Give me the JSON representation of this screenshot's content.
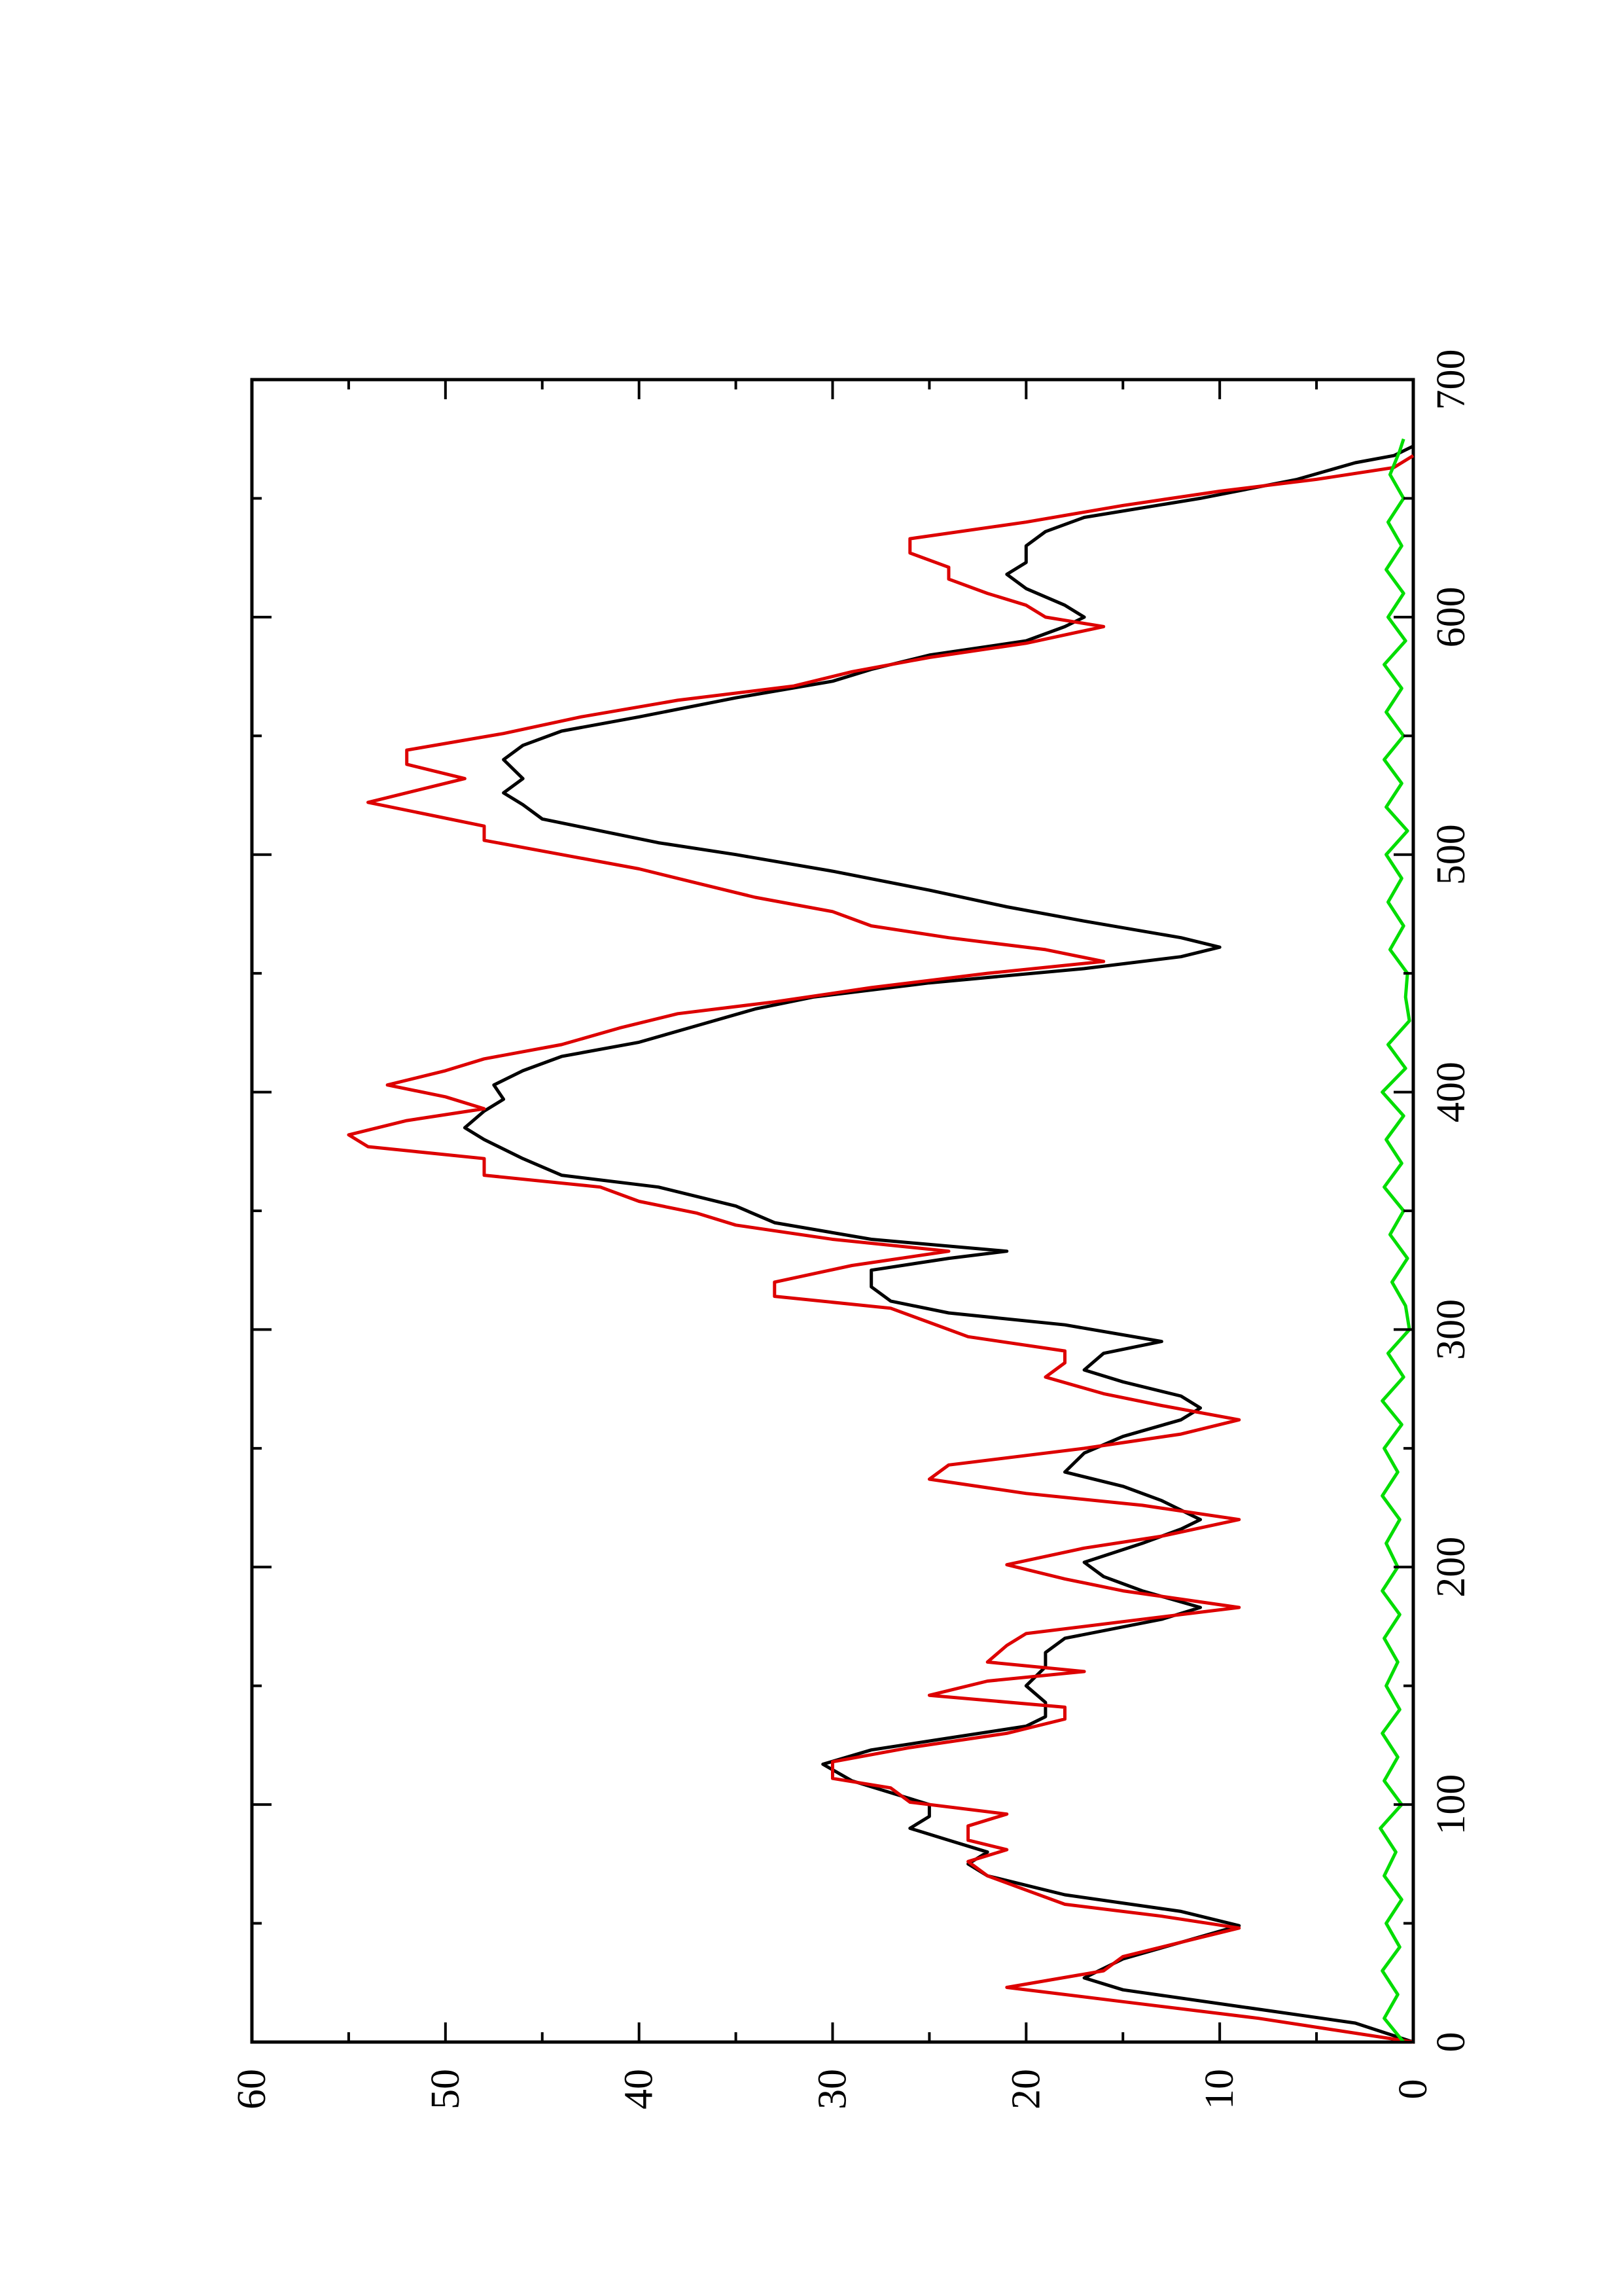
{
  "chart_data": {
    "type": "line",
    "orientation": "rotated-90-ccw",
    "title": "",
    "xlabel": "",
    "ylabel": "",
    "xlim": [
      0,
      700
    ],
    "ylim": [
      0,
      60
    ],
    "grid": false,
    "legend": "none",
    "x_ticks": [
      "0",
      "100",
      "200",
      "300",
      "400",
      "500",
      "600",
      "700"
    ],
    "y_ticks": [
      "0",
      "10",
      "20",
      "30",
      "40",
      "50",
      "60"
    ],
    "colors": {
      "black_series": "#000000",
      "red_series": "#dd0000",
      "green_series": "#00dd00"
    },
    "series": [
      {
        "color": "#000000",
        "points": [
          [
            0,
            0
          ],
          [
            8,
            3
          ],
          [
            15,
            9
          ],
          [
            22,
            15
          ],
          [
            27,
            17
          ],
          [
            35,
            15
          ],
          [
            42,
            12
          ],
          [
            49,
            9
          ],
          [
            55,
            12
          ],
          [
            62,
            18
          ],
          [
            70,
            22
          ],
          [
            75,
            23
          ],
          [
            80,
            22
          ],
          [
            85,
            24
          ],
          [
            90,
            26
          ],
          [
            95,
            25
          ],
          [
            100,
            25
          ],
          [
            105,
            27
          ],
          [
            110,
            29
          ],
          [
            117,
            30.5
          ],
          [
            123,
            28
          ],
          [
            128,
            24
          ],
          [
            133,
            20
          ],
          [
            137,
            19
          ],
          [
            143,
            19
          ],
          [
            150,
            20
          ],
          [
            158,
            19
          ],
          [
            164,
            19
          ],
          [
            170,
            18
          ],
          [
            178,
            13
          ],
          [
            183,
            11
          ],
          [
            190,
            14
          ],
          [
            196,
            16
          ],
          [
            202,
            17
          ],
          [
            210,
            14
          ],
          [
            216,
            12
          ],
          [
            220,
            11
          ],
          [
            228,
            13
          ],
          [
            234,
            15
          ],
          [
            240,
            18
          ],
          [
            248,
            17
          ],
          [
            255,
            15
          ],
          [
            262,
            12
          ],
          [
            267,
            11
          ],
          [
            272,
            12
          ],
          [
            278,
            15
          ],
          [
            283,
            17
          ],
          [
            290,
            16
          ],
          [
            295,
            13
          ],
          [
            302,
            18
          ],
          [
            307,
            24
          ],
          [
            312,
            27
          ],
          [
            318,
            28
          ],
          [
            325,
            28
          ],
          [
            330,
            24
          ],
          [
            333,
            21
          ],
          [
            338,
            28
          ],
          [
            345,
            33
          ],
          [
            352,
            35
          ],
          [
            360,
            39
          ],
          [
            365,
            44
          ],
          [
            372,
            46
          ],
          [
            380,
            48
          ],
          [
            385,
            49
          ],
          [
            392,
            48
          ],
          [
            397,
            47
          ],
          [
            403,
            47.5
          ],
          [
            409,
            46
          ],
          [
            415,
            44
          ],
          [
            421,
            40
          ],
          [
            428,
            37
          ],
          [
            435,
            34
          ],
          [
            440,
            31
          ],
          [
            446,
            25
          ],
          [
            452,
            17
          ],
          [
            457,
            12
          ],
          [
            461,
            10
          ],
          [
            465,
            12
          ],
          [
            472,
            17
          ],
          [
            478,
            21
          ],
          [
            485,
            25
          ],
          [
            493,
            30
          ],
          [
            500,
            35
          ],
          [
            505,
            39
          ],
          [
            510,
            42
          ],
          [
            515,
            45
          ],
          [
            521,
            46
          ],
          [
            526,
            47
          ],
          [
            532,
            46
          ],
          [
            540,
            47
          ],
          [
            546,
            46
          ],
          [
            552,
            44
          ],
          [
            558,
            40
          ],
          [
            566,
            35
          ],
          [
            573,
            30
          ],
          [
            578,
            28
          ],
          [
            584,
            25
          ],
          [
            590,
            20
          ],
          [
            596,
            18
          ],
          [
            600,
            17
          ],
          [
            605,
            18
          ],
          [
            612,
            20
          ],
          [
            618,
            21
          ],
          [
            623,
            20
          ],
          [
            630,
            20
          ],
          [
            636,
            19
          ],
          [
            642,
            17
          ],
          [
            650,
            11
          ],
          [
            658,
            6
          ],
          [
            665,
            3
          ],
          [
            668,
            1
          ],
          [
            672,
            0
          ]
        ]
      },
      {
        "color": "#dd0000",
        "points": [
          [
            0,
            0
          ],
          [
            5,
            4
          ],
          [
            10,
            8
          ],
          [
            17,
            15
          ],
          [
            23,
            21
          ],
          [
            30,
            16
          ],
          [
            36,
            15
          ],
          [
            42,
            12
          ],
          [
            48,
            9
          ],
          [
            53,
            13
          ],
          [
            58,
            18
          ],
          [
            64,
            20
          ],
          [
            70,
            22
          ],
          [
            76,
            23
          ],
          [
            81,
            21
          ],
          [
            85,
            23
          ],
          [
            91,
            23
          ],
          [
            96,
            21
          ],
          [
            101,
            26
          ],
          [
            107,
            27
          ],
          [
            111,
            30
          ],
          [
            118,
            30
          ],
          [
            124,
            26
          ],
          [
            130,
            21
          ],
          [
            136,
            18
          ],
          [
            141,
            18
          ],
          [
            146,
            25
          ],
          [
            152,
            22
          ],
          [
            156,
            17
          ],
          [
            160,
            22
          ],
          [
            167,
            21
          ],
          [
            172,
            20
          ],
          [
            177,
            15
          ],
          [
            183,
            9
          ],
          [
            190,
            15
          ],
          [
            195,
            18
          ],
          [
            201,
            21
          ],
          [
            208,
            17
          ],
          [
            213,
            13
          ],
          [
            220,
            9
          ],
          [
            226,
            14
          ],
          [
            231,
            20
          ],
          [
            237,
            25
          ],
          [
            243,
            24
          ],
          [
            250,
            17
          ],
          [
            256,
            12
          ],
          [
            262,
            9
          ],
          [
            268,
            13
          ],
          [
            273,
            16
          ],
          [
            280,
            19
          ],
          [
            286,
            18
          ],
          [
            291,
            18
          ],
          [
            297,
            23
          ],
          [
            303,
            25
          ],
          [
            309,
            27
          ],
          [
            314,
            33
          ],
          [
            320,
            33
          ],
          [
            327,
            29
          ],
          [
            333,
            24
          ],
          [
            338,
            30
          ],
          [
            344,
            35
          ],
          [
            349,
            37
          ],
          [
            354,
            40
          ],
          [
            360,
            42
          ],
          [
            365,
            48
          ],
          [
            372,
            48
          ],
          [
            377,
            54
          ],
          [
            382,
            55
          ],
          [
            388,
            52
          ],
          [
            393,
            48
          ],
          [
            398,
            50
          ],
          [
            403,
            53
          ],
          [
            409,
            50
          ],
          [
            414,
            48
          ],
          [
            420,
            44
          ],
          [
            427,
            41
          ],
          [
            433,
            38
          ],
          [
            438,
            33
          ],
          [
            444,
            28
          ],
          [
            450,
            22
          ],
          [
            455,
            16
          ],
          [
            460,
            19
          ],
          [
            465,
            24
          ],
          [
            470,
            28
          ],
          [
            476,
            30
          ],
          [
            482,
            34
          ],
          [
            488,
            37
          ],
          [
            494,
            40
          ],
          [
            500,
            44
          ],
          [
            506,
            48
          ],
          [
            512,
            48
          ],
          [
            517,
            51
          ],
          [
            522,
            54
          ],
          [
            528,
            51
          ],
          [
            532,
            49
          ],
          [
            538,
            52
          ],
          [
            544,
            52
          ],
          [
            551,
            47
          ],
          [
            558,
            43
          ],
          [
            565,
            38
          ],
          [
            571,
            32
          ],
          [
            577,
            29
          ],
          [
            583,
            25
          ],
          [
            589,
            20
          ],
          [
            596,
            16
          ],
          [
            600,
            19
          ],
          [
            605,
            20
          ],
          [
            610,
            22
          ],
          [
            616,
            24
          ],
          [
            621,
            24
          ],
          [
            627,
            26
          ],
          [
            633,
            26
          ],
          [
            640,
            20
          ],
          [
            647,
            15
          ],
          [
            653,
            10
          ],
          [
            658,
            5
          ],
          [
            663,
            1
          ],
          [
            668,
            0
          ]
        ]
      },
      {
        "color": "#00dd00",
        "points": [
          [
            0,
            0.5
          ],
          [
            10,
            1.5
          ],
          [
            20,
            0.8
          ],
          [
            30,
            1.6
          ],
          [
            40,
            0.7
          ],
          [
            50,
            1.4
          ],
          [
            60,
            0.6
          ],
          [
            70,
            1.5
          ],
          [
            80,
            0.9
          ],
          [
            90,
            1.7
          ],
          [
            100,
            0.6
          ],
          [
            110,
            1.5
          ],
          [
            120,
            0.8
          ],
          [
            130,
            1.6
          ],
          [
            140,
            0.7
          ],
          [
            150,
            1.4
          ],
          [
            160,
            0.8
          ],
          [
            170,
            1.5
          ],
          [
            180,
            0.7
          ],
          [
            190,
            1.6
          ],
          [
            200,
            0.8
          ],
          [
            210,
            1.4
          ],
          [
            220,
            0.7
          ],
          [
            230,
            1.6
          ],
          [
            240,
            0.8
          ],
          [
            250,
            1.5
          ],
          [
            260,
            0.6
          ],
          [
            270,
            1.6
          ],
          [
            280,
            0.5
          ],
          [
            290,
            1.3
          ],
          [
            300,
            0.2
          ],
          [
            310,
            0.4
          ],
          [
            320,
            1.1
          ],
          [
            330,
            0.3
          ],
          [
            340,
            1.2
          ],
          [
            350,
            0.5
          ],
          [
            360,
            1.5
          ],
          [
            370,
            0.6
          ],
          [
            380,
            1.4
          ],
          [
            390,
            0.5
          ],
          [
            400,
            1.6
          ],
          [
            410,
            0.4
          ],
          [
            420,
            1.3
          ],
          [
            430,
            0.2
          ],
          [
            440,
            0.4
          ],
          [
            450,
            0.3
          ],
          [
            460,
            1.2
          ],
          [
            470,
            0.5
          ],
          [
            480,
            1.3
          ],
          [
            490,
            0.6
          ],
          [
            500,
            1.4
          ],
          [
            510,
            0.3
          ],
          [
            520,
            1.4
          ],
          [
            530,
            0.6
          ],
          [
            540,
            1.5
          ],
          [
            550,
            0.5
          ],
          [
            560,
            1.4
          ],
          [
            570,
            0.6
          ],
          [
            580,
            1.5
          ],
          [
            590,
            0.4
          ],
          [
            600,
            1.3
          ],
          [
            610,
            0.5
          ],
          [
            620,
            1.4
          ],
          [
            630,
            0.6
          ],
          [
            640,
            1.3
          ],
          [
            650,
            0.5
          ],
          [
            660,
            1.2
          ],
          [
            670,
            0.7
          ],
          [
            675,
            0.5
          ]
        ]
      }
    ]
  }
}
